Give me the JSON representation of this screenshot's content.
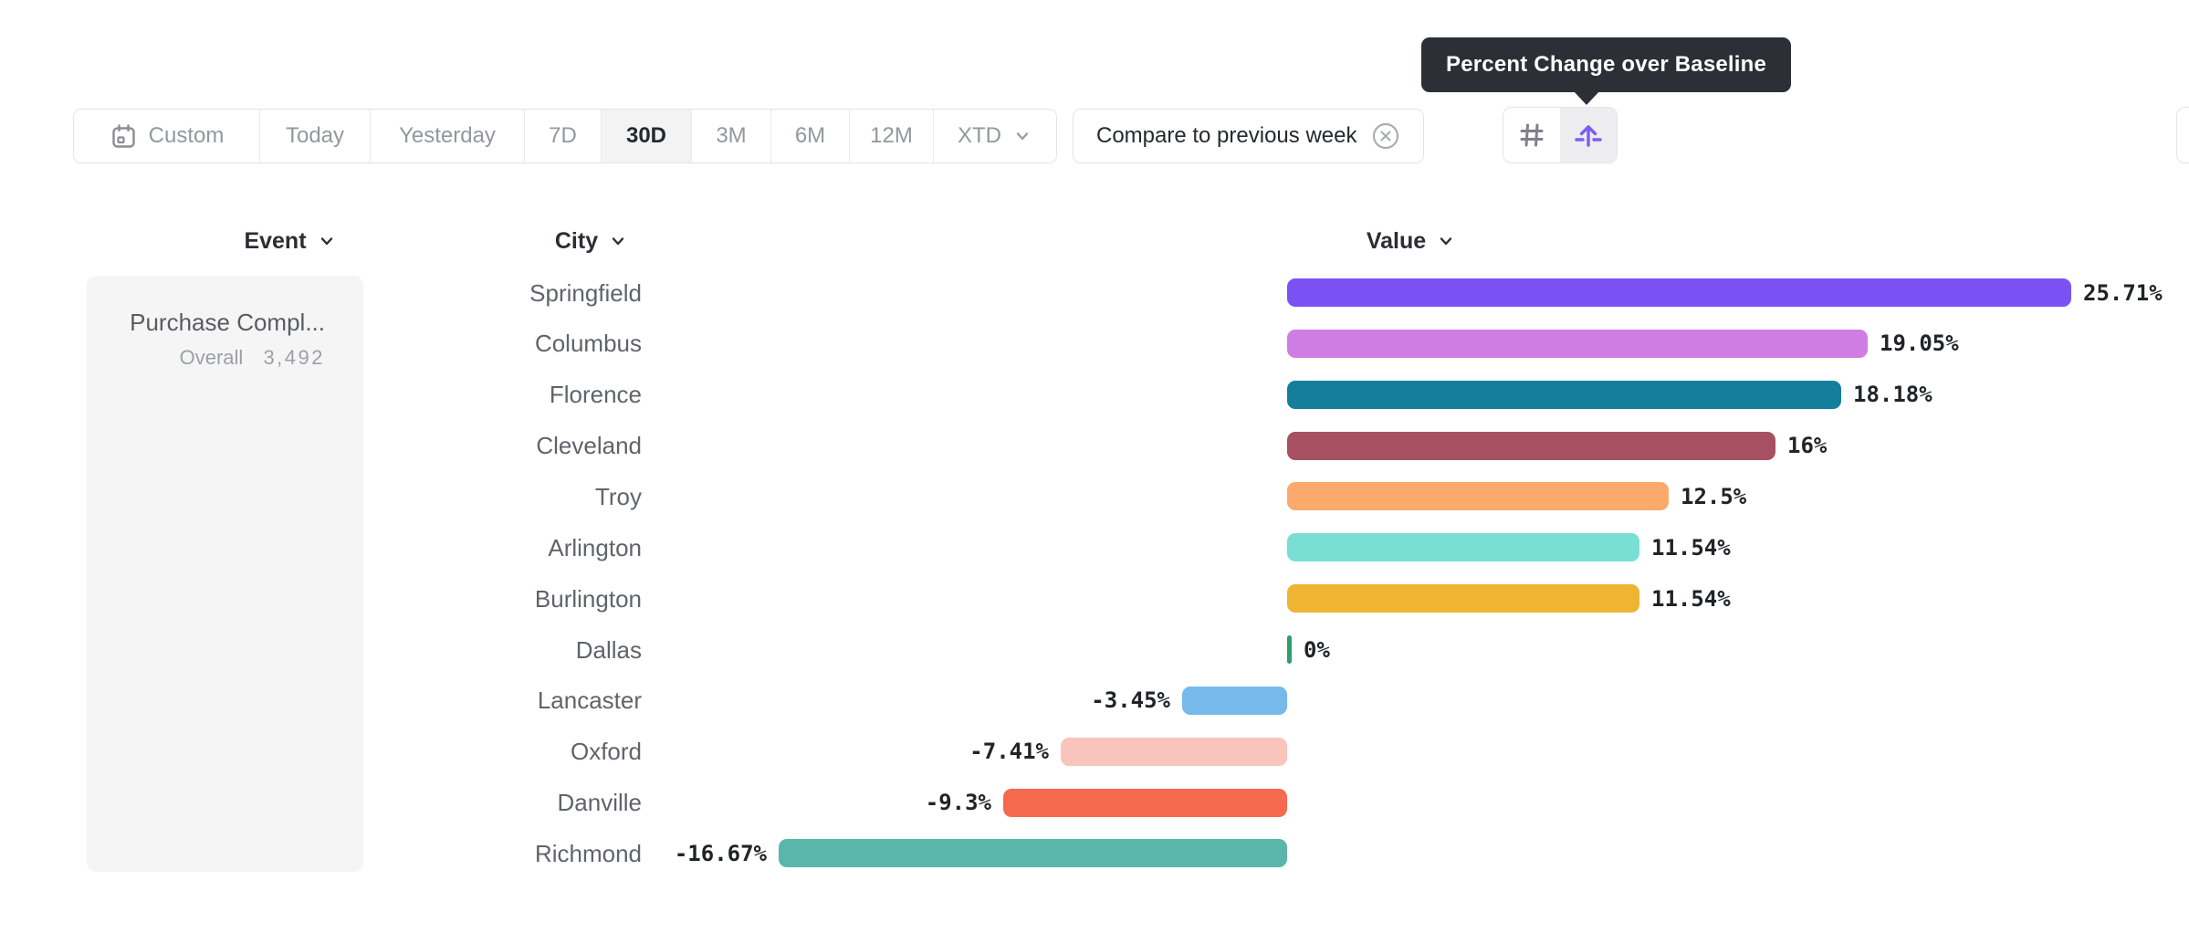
{
  "tooltip": {
    "text": "Percent Change over Baseline"
  },
  "toolbar": {
    "items": [
      {
        "label": "Custom",
        "icon": "calendar",
        "selected": false
      },
      {
        "label": "Today",
        "selected": false
      },
      {
        "label": "Yesterday",
        "selected": false
      },
      {
        "label": "7D",
        "selected": false
      },
      {
        "label": "30D",
        "selected": true
      },
      {
        "label": "3M",
        "selected": false
      },
      {
        "label": "6M",
        "selected": false
      },
      {
        "label": "12M",
        "selected": false
      },
      {
        "label": "XTD",
        "chevron": true,
        "selected": false
      }
    ]
  },
  "compare_chip": {
    "label": "Compare to previous week",
    "close_icon": "circle-x"
  },
  "view_toggle": {
    "buttons": [
      {
        "icon": "hash",
        "selected": false
      },
      {
        "icon": "arrow-over-baseline",
        "selected": true
      }
    ],
    "accent_color": "#7B5CF7",
    "selected_bg": "#EDEDEF"
  },
  "columns": {
    "event": "Event",
    "city": "City",
    "value": "Value"
  },
  "event_panel": {
    "name": "Purchase Compl...",
    "overall_label": "Overall",
    "overall_value": "3,492"
  },
  "chart_data": {
    "type": "bar",
    "orientation": "horizontal",
    "title": "Percent Change over Baseline",
    "unit": "%",
    "baseline": 0,
    "xlim": [
      -16.67,
      25.71
    ],
    "grid": false,
    "categories": [
      "Springfield",
      "Columbus",
      "Florence",
      "Cleveland",
      "Troy",
      "Arlington",
      "Burlington",
      "Dallas",
      "Lancaster",
      "Oxford",
      "Danville",
      "Richmond"
    ],
    "values": [
      25.71,
      19.05,
      18.18,
      16,
      12.5,
      11.54,
      11.54,
      0,
      -3.45,
      -7.41,
      -9.3,
      -16.67
    ],
    "labels": [
      "25.71%",
      "19.05%",
      "18.18%",
      "16%",
      "12.5%",
      "11.54%",
      "11.54%",
      "0%",
      "-3.45%",
      "-7.41%",
      "-9.3%",
      "-16.67%"
    ],
    "colors": [
      "#7A52F4",
      "#CF7DE3",
      "#137F9D",
      "#A65061",
      "#FBAA6C",
      "#79DED3",
      "#EFB431",
      "#2F9E68",
      "#76BAEB",
      "#F9C4BC",
      "#F56A4C",
      "#58B6AB"
    ]
  }
}
